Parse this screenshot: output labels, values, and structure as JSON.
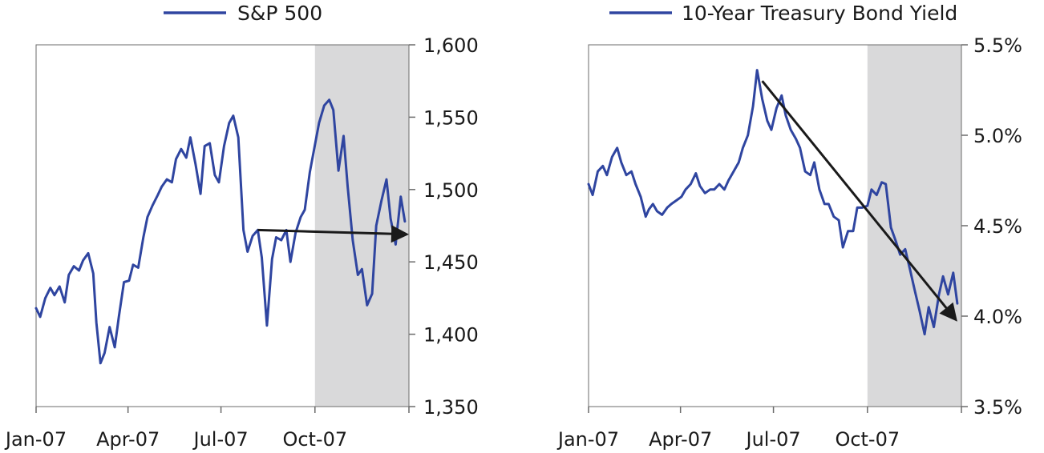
{
  "colors": {
    "line": "#2f45a0",
    "shade": "#d9d9da",
    "arrow": "#1a1a1a",
    "frame": "#6b6b6b"
  },
  "chart_data": [
    {
      "type": "line",
      "legend": "S&P 500",
      "legend_position": "top-center",
      "y_axis_side": "right",
      "ylim": [
        1350,
        1600
      ],
      "yticks": [
        1350,
        1400,
        1450,
        1500,
        1550,
        1600
      ],
      "ytick_labels": [
        "1,350",
        "1,400",
        "1,450",
        "1,500",
        "1,550",
        "1,600"
      ],
      "xlim": [
        "2007-01-01",
        "2008-01-01"
      ],
      "xticks": [
        "2007-01-01",
        "2007-04-01",
        "2007-07-01",
        "2007-10-01",
        "2008-01-01"
      ],
      "xtick_labels": [
        "Jan-07",
        "Apr-07",
        "Jul-07",
        "Oct-07",
        ""
      ],
      "shaded_region": [
        "2007-10-01",
        "2008-01-01"
      ],
      "trend_arrow": {
        "from": [
          "2007-08-06",
          1472
        ],
        "to": [
          "2008-01-01",
          1469
        ]
      },
      "series": [
        {
          "name": "S&P 500",
          "x": [
            "2007-01-01",
            "2007-01-05",
            "2007-01-10",
            "2007-01-15",
            "2007-01-19",
            "2007-01-24",
            "2007-01-29",
            "2007-02-02",
            "2007-02-07",
            "2007-02-12",
            "2007-02-16",
            "2007-02-21",
            "2007-02-26",
            "2007-03-01",
            "2007-03-05",
            "2007-03-09",
            "2007-03-14",
            "2007-03-19",
            "2007-03-23",
            "2007-03-28",
            "2007-04-02",
            "2007-04-06",
            "2007-04-11",
            "2007-04-16",
            "2007-04-20",
            "2007-04-25",
            "2007-04-30",
            "2007-05-04",
            "2007-05-09",
            "2007-05-14",
            "2007-05-18",
            "2007-05-23",
            "2007-05-28",
            "2007-06-01",
            "2007-06-06",
            "2007-06-11",
            "2007-06-15",
            "2007-06-20",
            "2007-06-25",
            "2007-06-29",
            "2007-07-04",
            "2007-07-09",
            "2007-07-13",
            "2007-07-18",
            "2007-07-23",
            "2007-07-27",
            "2007-08-01",
            "2007-08-06",
            "2007-08-10",
            "2007-08-15",
            "2007-08-20",
            "2007-08-24",
            "2007-08-29",
            "2007-09-03",
            "2007-09-07",
            "2007-09-12",
            "2007-09-17",
            "2007-09-21",
            "2007-09-26",
            "2007-10-01",
            "2007-10-05",
            "2007-10-10",
            "2007-10-15",
            "2007-10-19",
            "2007-10-24",
            "2007-10-29",
            "2007-11-02",
            "2007-11-07",
            "2007-11-12",
            "2007-11-16",
            "2007-11-21",
            "2007-11-26",
            "2007-11-30",
            "2007-12-05",
            "2007-12-10",
            "2007-12-14",
            "2007-12-19",
            "2007-12-24",
            "2007-12-28"
          ],
          "y": [
            1418,
            1412,
            1425,
            1432,
            1427,
            1433,
            1422,
            1441,
            1447,
            1444,
            1451,
            1456,
            1442,
            1408,
            1380,
            1387,
            1405,
            1391,
            1412,
            1436,
            1437,
            1448,
            1446,
            1467,
            1481,
            1489,
            1496,
            1502,
            1507,
            1505,
            1521,
            1528,
            1522,
            1536,
            1518,
            1497,
            1530,
            1532,
            1510,
            1505,
            1530,
            1546,
            1551,
            1536,
            1472,
            1457,
            1468,
            1472,
            1453,
            1406,
            1452,
            1467,
            1465,
            1472,
            1450,
            1470,
            1481,
            1486,
            1512,
            1531,
            1546,
            1558,
            1562,
            1555,
            1513,
            1537,
            1502,
            1465,
            1441,
            1445,
            1420,
            1428,
            1475,
            1492,
            1507,
            1480,
            1462,
            1495,
            1478
          ]
        }
      ]
    },
    {
      "type": "line",
      "legend": "10-Year Treasury Bond Yield",
      "legend_position": "top-center",
      "y_axis_side": "right",
      "ylim": [
        3.5,
        5.5
      ],
      "yticks": [
        3.5,
        4.0,
        4.5,
        5.0,
        5.5
      ],
      "ytick_labels": [
        "3.5%",
        "4.0%",
        "4.5%",
        "5.0%",
        "5.5%"
      ],
      "xlim": [
        "2007-01-01",
        "2008-01-01"
      ],
      "xticks": [
        "2007-01-01",
        "2007-04-01",
        "2007-07-01",
        "2007-10-01",
        "2008-01-01"
      ],
      "xtick_labels": [
        "Jan-07",
        "Apr-07",
        "Jul-07",
        "Oct-07",
        ""
      ],
      "shaded_region": [
        "2007-10-01",
        "2008-01-01"
      ],
      "trend_arrow": {
        "from": [
          "2007-06-20",
          5.3
        ],
        "to": [
          "2007-12-28",
          3.97
        ]
      },
      "series": [
        {
          "name": "10-Year Treasury Bond Yield",
          "x": [
            "2007-01-01",
            "2007-01-05",
            "2007-01-10",
            "2007-01-15",
            "2007-01-19",
            "2007-01-24",
            "2007-01-29",
            "2007-02-02",
            "2007-02-07",
            "2007-02-12",
            "2007-02-16",
            "2007-02-21",
            "2007-02-26",
            "2007-03-01",
            "2007-03-05",
            "2007-03-09",
            "2007-03-14",
            "2007-03-19",
            "2007-03-23",
            "2007-03-28",
            "2007-04-02",
            "2007-04-06",
            "2007-04-11",
            "2007-04-16",
            "2007-04-20",
            "2007-04-25",
            "2007-04-30",
            "2007-05-04",
            "2007-05-09",
            "2007-05-14",
            "2007-05-18",
            "2007-05-23",
            "2007-05-28",
            "2007-06-01",
            "2007-06-06",
            "2007-06-11",
            "2007-06-15",
            "2007-06-20",
            "2007-06-25",
            "2007-06-29",
            "2007-07-04",
            "2007-07-09",
            "2007-07-13",
            "2007-07-18",
            "2007-07-23",
            "2007-07-27",
            "2007-08-01",
            "2007-08-06",
            "2007-08-10",
            "2007-08-15",
            "2007-08-20",
            "2007-08-24",
            "2007-08-29",
            "2007-09-03",
            "2007-09-07",
            "2007-09-12",
            "2007-09-17",
            "2007-09-21",
            "2007-09-26",
            "2007-10-01",
            "2007-10-05",
            "2007-10-10",
            "2007-10-15",
            "2007-10-19",
            "2007-10-24",
            "2007-10-29",
            "2007-11-02",
            "2007-11-07",
            "2007-11-12",
            "2007-11-16",
            "2007-11-21",
            "2007-11-26",
            "2007-11-30",
            "2007-12-05",
            "2007-12-10",
            "2007-12-14",
            "2007-12-19",
            "2007-12-24",
            "2007-12-28"
          ],
          "y": [
            4.73,
            4.67,
            4.8,
            4.83,
            4.78,
            4.88,
            4.93,
            4.85,
            4.78,
            4.8,
            4.73,
            4.66,
            4.55,
            4.59,
            4.62,
            4.58,
            4.56,
            4.6,
            4.62,
            4.64,
            4.66,
            4.7,
            4.73,
            4.79,
            4.72,
            4.68,
            4.7,
            4.7,
            4.73,
            4.7,
            4.75,
            4.8,
            4.85,
            4.93,
            5.0,
            5.16,
            5.36,
            5.2,
            5.08,
            5.03,
            5.15,
            5.22,
            5.11,
            5.03,
            4.98,
            4.93,
            4.8,
            4.78,
            4.85,
            4.7,
            4.62,
            4.62,
            4.55,
            4.53,
            4.38,
            4.47,
            4.47,
            4.6,
            4.6,
            4.61,
            4.7,
            4.67,
            4.74,
            4.73,
            4.49,
            4.41,
            4.34,
            4.37,
            4.25,
            4.15,
            4.03,
            3.9,
            4.05,
            3.94,
            4.12,
            4.22,
            4.12,
            4.24,
            4.07
          ]
        }
      ]
    }
  ]
}
